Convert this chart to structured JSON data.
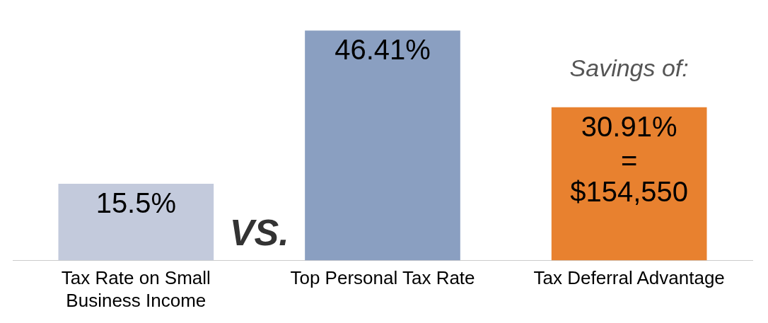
{
  "chart_data": {
    "type": "bar",
    "categories": [
      "Tax Rate on Small Business Income",
      "Top Personal Tax Rate",
      "Tax Deferral Advantage"
    ],
    "values": [
      15.5,
      46.41,
      30.91
    ],
    "colors": [
      "#c3cadc",
      "#8a9fc1",
      "#e8812f"
    ],
    "value_labels": [
      "15.5%",
      "46.41%",
      "30.91%"
    ],
    "annotations": [
      "VS.",
      "Savings of:",
      "= $154,550"
    ],
    "grid": false,
    "legend": false
  }
}
